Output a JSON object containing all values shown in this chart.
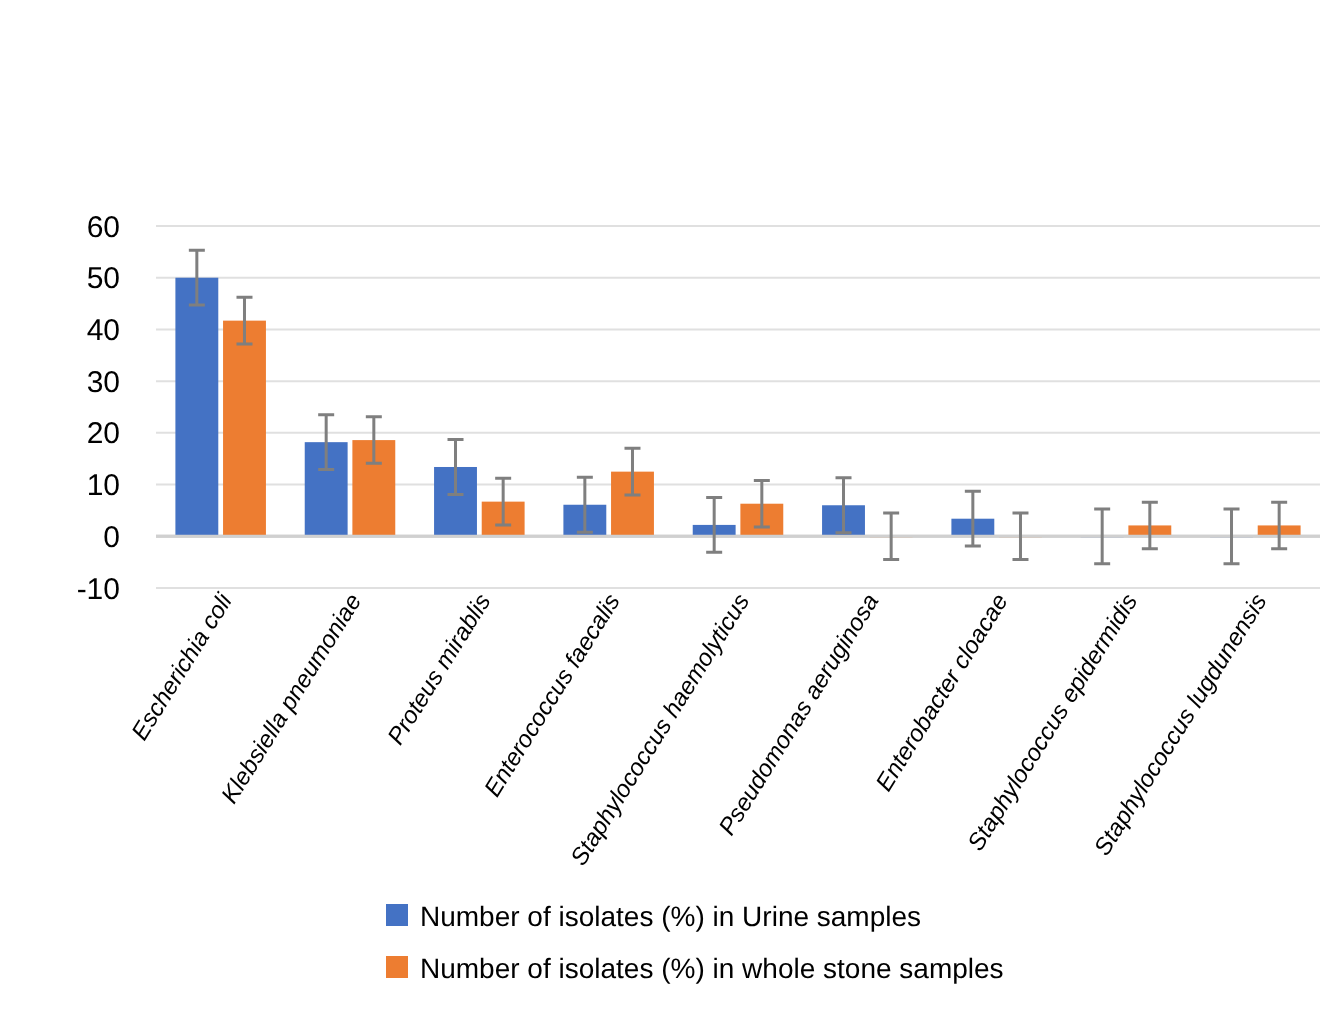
{
  "chart_data": {
    "type": "bar",
    "categories": [
      "Escherichia coli",
      "Klebsiella pneumoniae",
      "Proteus mirablis",
      "Enterococcus faecalis",
      "Staphylococcus haemolyticus",
      "Pseudomonas aeruginosa",
      "Enterobacter cloacae",
      "Staphylococcus epidermidis",
      "Staphylococcus lugdunensis"
    ],
    "series": [
      {
        "name": "Number of isolates (%) in Urine samples",
        "color": "#4472c4",
        "values": [
          50,
          18.2,
          13.4,
          6.1,
          2.2,
          6,
          3.4,
          0,
          0
        ],
        "errors": [
          5.3,
          5.3,
          5.3,
          5.3,
          5.3,
          5.3,
          5.3,
          5.3,
          5.3
        ]
      },
      {
        "name": "Number of isolates (%) in whole stone samples",
        "color": "#ed7d31",
        "values": [
          41.7,
          18.6,
          6.7,
          12.5,
          6.3,
          0,
          0,
          2.1,
          2.1
        ],
        "errors": [
          4.5,
          4.5,
          4.5,
          4.5,
          4.5,
          4.5,
          4.5,
          4.5,
          4.5
        ]
      }
    ],
    "ylim": [
      -10,
      60
    ],
    "yticks": [
      -10,
      0,
      10,
      20,
      30,
      40,
      50,
      60
    ],
    "grid": "y",
    "legend": "bottom"
  }
}
